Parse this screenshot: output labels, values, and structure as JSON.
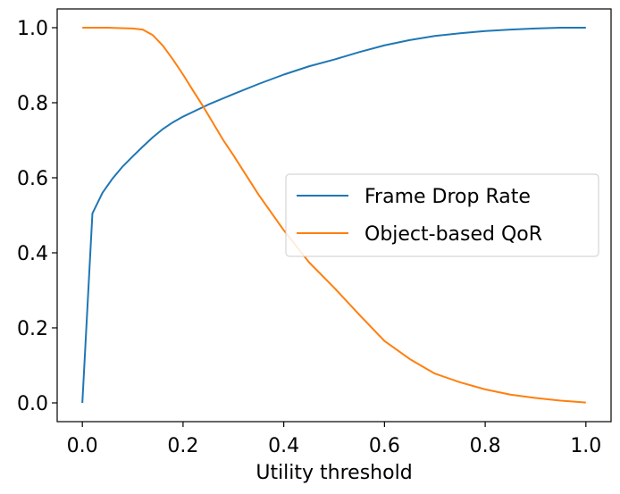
{
  "chart_data": {
    "type": "line",
    "title": "",
    "xlabel": "Utility threshold",
    "ylabel": "",
    "xlim": [
      -0.05,
      1.05
    ],
    "ylim": [
      -0.05,
      1.05
    ],
    "xticks": [
      0.0,
      0.2,
      0.4,
      0.6,
      0.8,
      1.0
    ],
    "xtick_labels": [
      "0.0",
      "0.2",
      "0.4",
      "0.6",
      "0.8",
      "1.0"
    ],
    "yticks": [
      0.0,
      0.2,
      0.4,
      0.6,
      0.8,
      1.0
    ],
    "ytick_labels": [
      "0.0",
      "0.2",
      "0.4",
      "0.6",
      "0.8",
      "1.0"
    ],
    "grid": false,
    "legend_position": "center-right",
    "series": [
      {
        "name": "Frame Drop Rate",
        "color": "#1f77b4",
        "x": [
          0.0,
          0.02,
          0.04,
          0.06,
          0.08,
          0.1,
          0.12,
          0.14,
          0.16,
          0.18,
          0.2,
          0.25,
          0.3,
          0.35,
          0.4,
          0.45,
          0.5,
          0.55,
          0.6,
          0.65,
          0.7,
          0.75,
          0.8,
          0.85,
          0.9,
          0.95,
          1.0
        ],
        "y": [
          0.0,
          0.505,
          0.56,
          0.598,
          0.63,
          0.657,
          0.683,
          0.708,
          0.73,
          0.748,
          0.763,
          0.795,
          0.823,
          0.85,
          0.875,
          0.897,
          0.915,
          0.935,
          0.953,
          0.967,
          0.978,
          0.985,
          0.991,
          0.995,
          0.998,
          1.0,
          1.0
        ]
      },
      {
        "name": "Object-based QoR",
        "color": "#ff7f0e",
        "x": [
          0.0,
          0.05,
          0.1,
          0.12,
          0.14,
          0.16,
          0.18,
          0.2,
          0.22,
          0.24,
          0.26,
          0.28,
          0.3,
          0.35,
          0.4,
          0.45,
          0.5,
          0.55,
          0.6,
          0.65,
          0.7,
          0.75,
          0.8,
          0.85,
          0.9,
          0.95,
          1.0
        ],
        "y": [
          1.0,
          1.0,
          0.998,
          0.995,
          0.98,
          0.952,
          0.915,
          0.875,
          0.832,
          0.79,
          0.745,
          0.7,
          0.66,
          0.555,
          0.46,
          0.375,
          0.307,
          0.235,
          0.165,
          0.117,
          0.078,
          0.055,
          0.036,
          0.022,
          0.013,
          0.006,
          0.001
        ]
      }
    ]
  }
}
